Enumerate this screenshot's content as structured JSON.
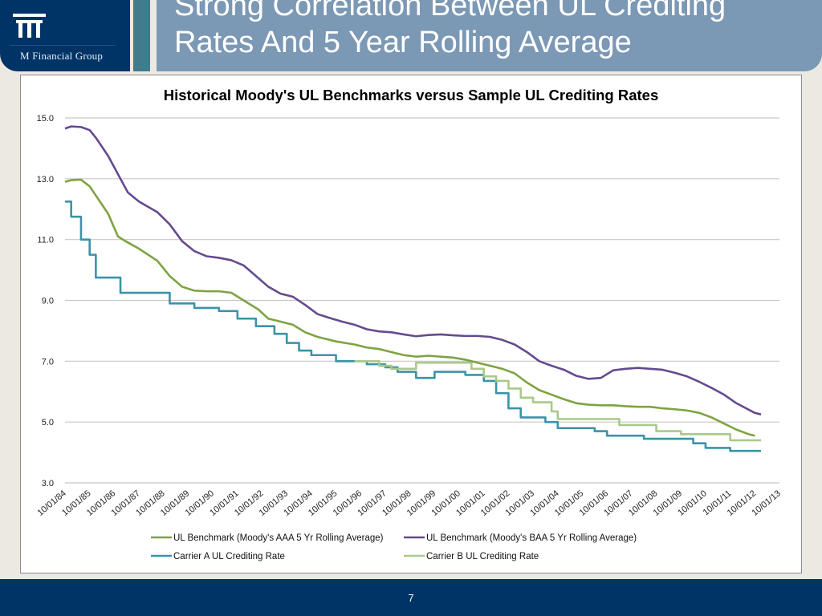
{
  "slide": {
    "title_line1": "Strong Correlation Between UL Crediting",
    "title_line2": "Rates And 5 Year Rolling Average",
    "logo_text": "M Financial Group",
    "page_number": "7",
    "colors": {
      "navy": "#003366",
      "teal": "#3f7c8c",
      "title_panel": "#7b98b5"
    }
  },
  "chart_data": {
    "type": "line",
    "title": "Historical Moody's UL Benchmarks versus Sample UL Crediting Rates",
    "xlabel": "",
    "ylabel": "",
    "ylim": [
      3.0,
      15.0
    ],
    "yticks": [
      "3.0",
      "5.0",
      "7.0",
      "9.0",
      "11.0",
      "13.0",
      "15.0"
    ],
    "ytick_values": [
      3,
      5,
      7,
      9,
      11,
      13,
      15
    ],
    "grid": true,
    "legend_position": "bottom",
    "categories": [
      "10/01/84",
      "10/01/85",
      "10/01/86",
      "10/01/87",
      "10/01/88",
      "10/01/89",
      "10/01/90",
      "10/01/91",
      "10/01/92",
      "10/01/93",
      "10/01/94",
      "10/01/95",
      "10/01/96",
      "10/01/97",
      "10/01/98",
      "10/01/99",
      "10/01/00",
      "10/01/01",
      "10/01/02",
      "10/01/03",
      "10/01/04",
      "10/01/05",
      "10/01/06",
      "10/01/07",
      "10/01/08",
      "10/01/09",
      "10/01/10",
      "10/01/11",
      "10/01/12",
      "10/01/13"
    ],
    "series": [
      {
        "name": "UL Benchmark (Moody's AAA 5 Yr Rolling Average)",
        "color": "#7ea342",
        "step": false,
        "points": [
          [
            1984.75,
            12.9
          ],
          [
            1985.0,
            12.95
          ],
          [
            1985.4,
            12.97
          ],
          [
            1985.75,
            12.75
          ],
          [
            1986.0,
            12.45
          ],
          [
            1986.5,
            11.85
          ],
          [
            1986.9,
            11.1
          ],
          [
            1987.2,
            10.95
          ],
          [
            1987.75,
            10.7
          ],
          [
            1988.5,
            10.3
          ],
          [
            1989.0,
            9.8
          ],
          [
            1989.5,
            9.45
          ],
          [
            1990.0,
            9.32
          ],
          [
            1990.5,
            9.3
          ],
          [
            1991.0,
            9.3
          ],
          [
            1991.5,
            9.25
          ],
          [
            1992.0,
            9.0
          ],
          [
            1992.6,
            8.7
          ],
          [
            1993.0,
            8.4
          ],
          [
            1993.5,
            8.3
          ],
          [
            1994.0,
            8.2
          ],
          [
            1994.5,
            7.95
          ],
          [
            1995.0,
            7.8
          ],
          [
            1995.75,
            7.65
          ],
          [
            1996.5,
            7.55
          ],
          [
            1997.0,
            7.45
          ],
          [
            1997.5,
            7.4
          ],
          [
            1998.0,
            7.3
          ],
          [
            1998.5,
            7.2
          ],
          [
            1999.0,
            7.15
          ],
          [
            1999.5,
            7.18
          ],
          [
            2000.0,
            7.15
          ],
          [
            2000.5,
            7.12
          ],
          [
            2001.0,
            7.05
          ],
          [
            2001.5,
            6.95
          ],
          [
            2002.0,
            6.85
          ],
          [
            2002.5,
            6.75
          ],
          [
            2003.0,
            6.6
          ],
          [
            2003.5,
            6.3
          ],
          [
            2004.0,
            6.05
          ],
          [
            2004.5,
            5.9
          ],
          [
            2005.0,
            5.75
          ],
          [
            2005.5,
            5.62
          ],
          [
            2006.0,
            5.57
          ],
          [
            2006.5,
            5.55
          ],
          [
            2007.0,
            5.55
          ],
          [
            2007.5,
            5.52
          ],
          [
            2008.0,
            5.5
          ],
          [
            2008.5,
            5.5
          ],
          [
            2009.0,
            5.45
          ],
          [
            2009.5,
            5.42
          ],
          [
            2010.0,
            5.38
          ],
          [
            2010.5,
            5.3
          ],
          [
            2011.0,
            5.15
          ],
          [
            2011.5,
            4.95
          ],
          [
            2012.0,
            4.75
          ],
          [
            2012.5,
            4.6
          ],
          [
            2012.75,
            4.55
          ]
        ]
      },
      {
        "name": "UL Benchmark (Moody's BAA 5 Yr Rolling Average)",
        "color": "#654a8e",
        "step": false,
        "points": [
          [
            1984.75,
            14.65
          ],
          [
            1985.0,
            14.72
          ],
          [
            1985.4,
            14.7
          ],
          [
            1985.75,
            14.6
          ],
          [
            1986.0,
            14.35
          ],
          [
            1986.5,
            13.75
          ],
          [
            1987.0,
            13.0
          ],
          [
            1987.3,
            12.55
          ],
          [
            1987.75,
            12.25
          ],
          [
            1988.5,
            11.9
          ],
          [
            1989.0,
            11.5
          ],
          [
            1989.5,
            10.95
          ],
          [
            1990.0,
            10.62
          ],
          [
            1990.5,
            10.45
          ],
          [
            1991.0,
            10.4
          ],
          [
            1991.5,
            10.32
          ],
          [
            1992.0,
            10.15
          ],
          [
            1992.5,
            9.8
          ],
          [
            1993.0,
            9.45
          ],
          [
            1993.5,
            9.22
          ],
          [
            1994.0,
            9.12
          ],
          [
            1994.5,
            8.85
          ],
          [
            1995.0,
            8.55
          ],
          [
            1995.5,
            8.42
          ],
          [
            1996.0,
            8.3
          ],
          [
            1996.5,
            8.2
          ],
          [
            1997.0,
            8.05
          ],
          [
            1997.5,
            7.98
          ],
          [
            1998.0,
            7.95
          ],
          [
            1998.5,
            7.88
          ],
          [
            1999.0,
            7.82
          ],
          [
            1999.5,
            7.86
          ],
          [
            2000.0,
            7.88
          ],
          [
            2000.5,
            7.85
          ],
          [
            2001.0,
            7.83
          ],
          [
            2001.5,
            7.83
          ],
          [
            2002.0,
            7.8
          ],
          [
            2002.5,
            7.7
          ],
          [
            2003.0,
            7.55
          ],
          [
            2003.5,
            7.3
          ],
          [
            2004.0,
            7.0
          ],
          [
            2004.5,
            6.85
          ],
          [
            2005.0,
            6.72
          ],
          [
            2005.5,
            6.52
          ],
          [
            2006.0,
            6.42
          ],
          [
            2006.5,
            6.45
          ],
          [
            2007.0,
            6.7
          ],
          [
            2007.5,
            6.75
          ],
          [
            2008.0,
            6.78
          ],
          [
            2008.5,
            6.75
          ],
          [
            2009.0,
            6.72
          ],
          [
            2009.5,
            6.62
          ],
          [
            2010.0,
            6.5
          ],
          [
            2010.5,
            6.32
          ],
          [
            2011.0,
            6.12
          ],
          [
            2011.5,
            5.9
          ],
          [
            2012.0,
            5.62
          ],
          [
            2012.75,
            5.3
          ],
          [
            2013.0,
            5.25
          ]
        ]
      },
      {
        "name": "Carrier A UL Crediting Rate",
        "color": "#3b93a8",
        "step": true,
        "points": [
          [
            1984.75,
            12.25
          ],
          [
            1985.0,
            11.75
          ],
          [
            1985.4,
            11.0
          ],
          [
            1985.75,
            10.5
          ],
          [
            1986.0,
            9.75
          ],
          [
            1987.0,
            9.25
          ],
          [
            1989.0,
            8.9
          ],
          [
            1990.0,
            8.75
          ],
          [
            1991.0,
            8.65
          ],
          [
            1991.75,
            8.4
          ],
          [
            1992.5,
            8.15
          ],
          [
            1993.25,
            7.9
          ],
          [
            1993.75,
            7.6
          ],
          [
            1994.25,
            7.35
          ],
          [
            1994.75,
            7.2
          ],
          [
            1995.75,
            7.0
          ],
          [
            1997.0,
            6.9
          ],
          [
            1997.75,
            6.8
          ],
          [
            1998.25,
            6.65
          ],
          [
            1999.0,
            6.45
          ],
          [
            1999.75,
            6.65
          ],
          [
            2001.0,
            6.55
          ],
          [
            2001.75,
            6.35
          ],
          [
            2002.25,
            5.95
          ],
          [
            2002.75,
            5.45
          ],
          [
            2003.25,
            5.15
          ],
          [
            2004.25,
            5.0
          ],
          [
            2004.75,
            4.8
          ],
          [
            2006.25,
            4.7
          ],
          [
            2006.75,
            4.55
          ],
          [
            2008.25,
            4.45
          ],
          [
            2010.25,
            4.3
          ],
          [
            2010.75,
            4.15
          ],
          [
            2011.75,
            4.05
          ],
          [
            2013.0,
            4.05
          ]
        ]
      },
      {
        "name": "Carrier B UL Crediting Rate",
        "color": "#a9c98a",
        "step": true,
        "points": [
          [
            1996.5,
            7.0
          ],
          [
            1997.5,
            6.85
          ],
          [
            1998.0,
            6.75
          ],
          [
            1999.0,
            6.95
          ],
          [
            2001.25,
            6.75
          ],
          [
            2001.75,
            6.5
          ],
          [
            2002.25,
            6.35
          ],
          [
            2002.75,
            6.1
          ],
          [
            2003.25,
            5.8
          ],
          [
            2003.75,
            5.65
          ],
          [
            2004.5,
            5.35
          ],
          [
            2004.75,
            5.1
          ],
          [
            2007.25,
            4.9
          ],
          [
            2008.75,
            4.7
          ],
          [
            2009.75,
            4.6
          ],
          [
            2011.75,
            4.4
          ],
          [
            2013.0,
            4.4
          ]
        ]
      }
    ],
    "legend": [
      "UL Benchmark (Moody's AAA 5 Yr Rolling Average)",
      "UL Benchmark (Moody's BAA 5 Yr Rolling Average)",
      "Carrier A UL Crediting Rate",
      "Carrier B UL Crediting Rate"
    ]
  }
}
